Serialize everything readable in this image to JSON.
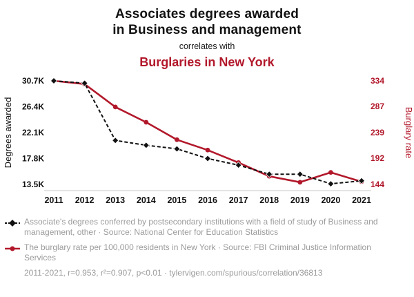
{
  "header": {
    "title_line1": "Associates degrees awarded",
    "title_line2": "in Business and management",
    "connector": "correlates with",
    "title2": "Burglaries in New York"
  },
  "chart_data": {
    "type": "line",
    "title": "Associates degrees awarded in Business and management correlates with Burglaries in New York",
    "x": [
      2011,
      2012,
      2013,
      2014,
      2015,
      2016,
      2017,
      2018,
      2019,
      2020,
      2021
    ],
    "series": [
      {
        "name": "Associate's degrees conferred (Business and management, other)",
        "axis": "left",
        "color": "#111111",
        "style": "dashed",
        "marker": "diamond",
        "values": [
          30.7,
          30.3,
          20.8,
          20.0,
          19.4,
          17.8,
          16.7,
          15.2,
          15.2,
          13.6,
          14.1
        ]
      },
      {
        "name": "Burglary rate per 100,000 residents in New York",
        "axis": "right",
        "color": "#b2182b",
        "style": "solid",
        "marker": "circle",
        "values": [
          334,
          328,
          286,
          258,
          226,
          207,
          184,
          159,
          148,
          166,
          149
        ]
      }
    ],
    "left_axis": {
      "label": "Degrees awarded",
      "ticks": [
        "30.7K",
        "26.4K",
        "22.1K",
        "17.8K",
        "13.5K"
      ],
      "tick_values": [
        30.7,
        26.4,
        22.1,
        17.8,
        13.5
      ],
      "range": [
        13.5,
        30.7
      ]
    },
    "right_axis": {
      "label": "Burglary rate",
      "ticks": [
        "334",
        "287",
        "239",
        "192",
        "144"
      ],
      "tick_values": [
        334,
        287,
        239,
        192,
        144
      ],
      "range": [
        144,
        334
      ]
    },
    "legend_position": "bottom",
    "grid": false
  },
  "legend": [
    {
      "marker": "black-diamond-dashed-line",
      "text": "Associate's degrees conferred by postsecondary institutions with a field of study of Business and management, other · Source: National Center for Education Statistics"
    },
    {
      "marker": "red-line-circle",
      "text": "The burglary rate per 100,000 residents in New York · Source: FBI Criminal Justice Information Services"
    }
  ],
  "footer": {
    "text": "2011-2021, r=0.953, r²=0.907, p<0.01 · tylervigen.com/spurious/correlation/36813"
  },
  "colors": {
    "accent_red": "#b2182b",
    "series_black": "#111111",
    "legend_gray": "#9b9b9b"
  }
}
